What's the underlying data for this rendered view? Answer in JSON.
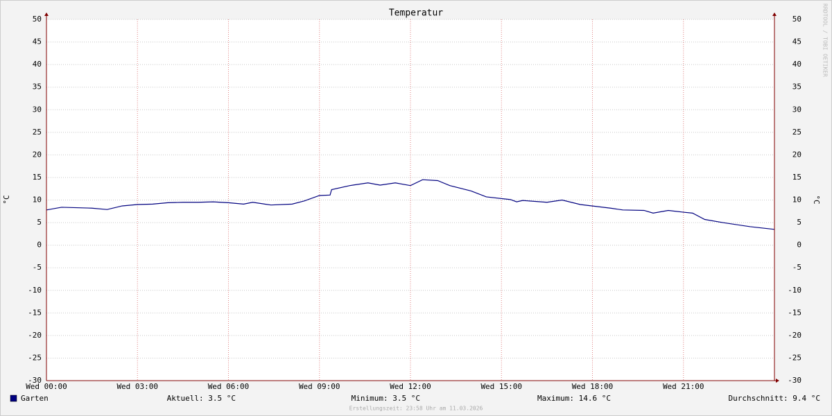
{
  "chart_data": {
    "type": "line",
    "title": "Temperatur",
    "y_label": "°C",
    "y2_label": "°C",
    "x": [
      0,
      0.5,
      1,
      1.5,
      2,
      2.5,
      3,
      3.5,
      4,
      4.5,
      5,
      5.5,
      6,
      6.5,
      6.8,
      7.4,
      8.1,
      8.5,
      9,
      9.35,
      9.4,
      10,
      10.6,
      11,
      11.5,
      12,
      12.4,
      12.9,
      13.3,
      14,
      14.5,
      15.3,
      15.5,
      15.7,
      16.5,
      17,
      17.6,
      18.6,
      19,
      19.7,
      20,
      20.5,
      21,
      21.3,
      21.7,
      22.3,
      22.7,
      23.2,
      24
    ],
    "series": [
      {
        "name": "Garten",
        "color": "#00007f",
        "values": [
          7.8,
          8.4,
          8.3,
          8.2,
          7.9,
          8.7,
          9.0,
          9.1,
          9.4,
          9.5,
          9.5,
          9.6,
          9.4,
          9.1,
          9.5,
          8.9,
          9.1,
          9.8,
          11.0,
          11.1,
          12.3,
          13.2,
          13.8,
          13.3,
          13.8,
          13.2,
          14.5,
          14.3,
          13.2,
          12.0,
          10.7,
          10.1,
          9.6,
          9.9,
          9.5,
          10.0,
          9.0,
          8.2,
          7.8,
          7.7,
          7.1,
          7.7,
          7.3,
          7.1,
          5.7,
          5.0,
          4.6,
          4.1,
          3.5
        ]
      }
    ],
    "xlim": [
      0,
      24
    ],
    "xticks": [
      {
        "value": 0,
        "label": "Wed 00:00"
      },
      {
        "value": 3,
        "label": "Wed 03:00"
      },
      {
        "value": 6,
        "label": "Wed 06:00"
      },
      {
        "value": 9,
        "label": "Wed 09:00"
      },
      {
        "value": 12,
        "label": "Wed 12:00"
      },
      {
        "value": 15,
        "label": "Wed 15:00"
      },
      {
        "value": 18,
        "label": "Wed 18:00"
      },
      {
        "value": 21,
        "label": "Wed 21:00"
      }
    ],
    "ylim": [
      -30,
      50
    ],
    "yticks": [
      -30,
      -25,
      -20,
      -15,
      -10,
      -5,
      0,
      5,
      10,
      15,
      20,
      25,
      30,
      35,
      40,
      45,
      50
    ],
    "grid": true,
    "stats": [
      "Aktuell: 3.5 °C",
      "Minimum: 3.5 °C",
      "Maximum: 14.6 °C",
      "Durchschnitt: 9.4 °C"
    ],
    "footer": "Erstellungszeit: 23:58 Uhr am 11.03.2026",
    "watermark": "RRDTOOL / TOBI OETIKER"
  }
}
